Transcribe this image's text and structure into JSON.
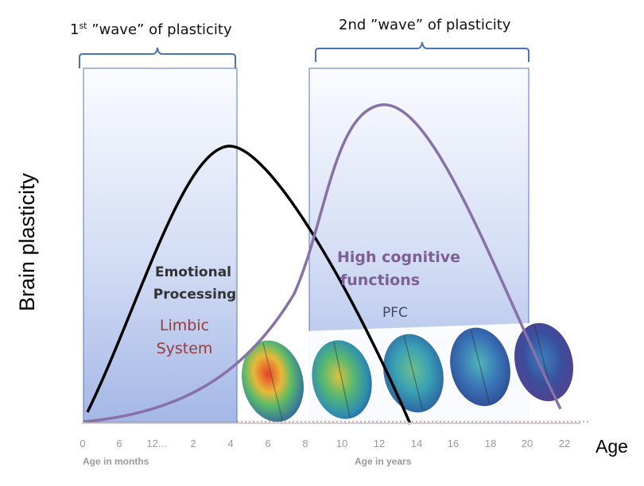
{
  "waves": [
    {
      "label_sup": "st",
      "label_num": "1",
      "label_rest": " ”wave” of plasticity"
    },
    {
      "label": "2nd ”wave” of plasticity"
    }
  ],
  "y_axis_label": "Brain plasticity",
  "x_axis_label": "Age",
  "x_axis_sublabels": {
    "months": "Age in months",
    "years": "Age in years"
  },
  "x_ticks": [
    "0",
    "6",
    "12...",
    "2",
    "4",
    "6",
    "8",
    "10",
    "12",
    "14",
    "16",
    "18",
    "20",
    "22"
  ],
  "regions": {
    "emotional": {
      "title_line1": "Emotional",
      "title_line2": "Processing",
      "system_line1": "Limbic",
      "system_line2": "System"
    },
    "cognitive": {
      "title_line1": "High cognitive",
      "title_line2": "functions",
      "system": "PFC"
    }
  },
  "colors": {
    "panel_top": "#ffffff",
    "panel_bottom": "#9fb4e6",
    "panel_border": "#5577b8",
    "brace": "#4a72b8",
    "curve_limbic": "#000000",
    "curve_pfc": "#8870a8",
    "axis_dotted": "#c0504d"
  },
  "brain_images": [
    "brain-map-1",
    "brain-map-2",
    "brain-map-3",
    "brain-map-4",
    "brain-map-5"
  ]
}
